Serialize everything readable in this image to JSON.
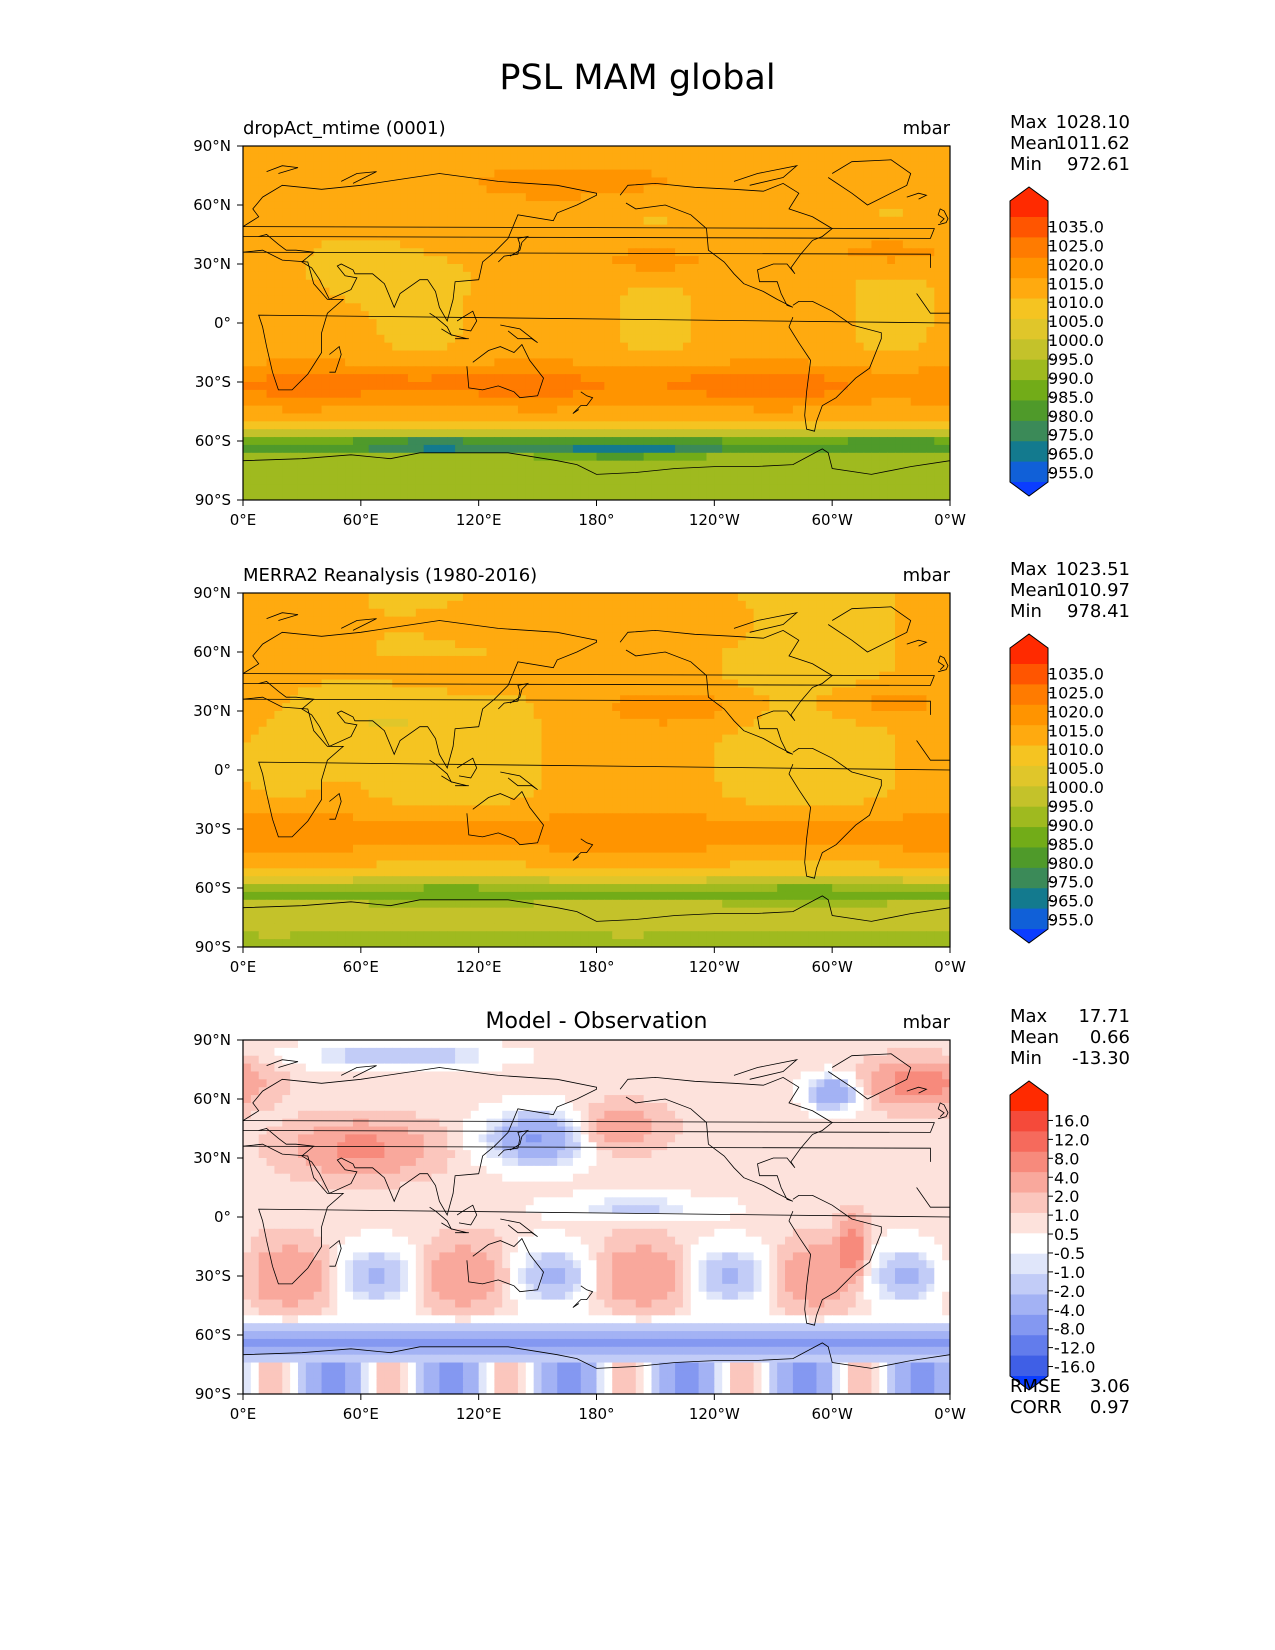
{
  "figure": {
    "title": "PSL MAM global"
  },
  "chart_data": [
    {
      "type": "heatmap",
      "title": "dropAct_mtime (0001)",
      "units": "mbar",
      "xlabel": "",
      "ylabel": "",
      "x_ticks": [
        "0°E",
        "60°E",
        "120°E",
        "180°",
        "120°W",
        "60°W",
        "0°W"
      ],
      "y_ticks": [
        "90°N",
        "60°N",
        "30°N",
        "0°",
        "30°S",
        "60°S",
        "90°S"
      ],
      "x_range": [
        0,
        360
      ],
      "y_range": [
        -90,
        90
      ],
      "stats": {
        "max_label": "Max",
        "max": "1028.10",
        "mean_label": "Mean",
        "mean": "1011.62",
        "min_label": "Min",
        "min": "972.61"
      },
      "colorbar": {
        "labels": [
          "1035.0",
          "1025.0",
          "1020.0",
          "1015.0",
          "1010.0",
          "1005.0",
          "1000.0",
          "995.0",
          "990.0",
          "985.0",
          "980.0",
          "975.0",
          "965.0",
          "955.0"
        ],
        "colors": [
          "#ff2a00",
          "#ff5500",
          "#ff7b00",
          "#ff9400",
          "#ffaa0f",
          "#f5c421",
          "#e0c62a",
          "#c4c22a",
          "#9fba1f",
          "#72ac18",
          "#4f9a2a",
          "#3b8a58",
          "#137a8e",
          "#1060d8",
          "#0b3dff"
        ]
      },
      "field": "psl_model"
    },
    {
      "type": "heatmap",
      "title": "MERRA2 Reanalysis (1980-2016)",
      "units": "mbar",
      "xlabel": "",
      "ylabel": "",
      "x_ticks": [
        "0°E",
        "60°E",
        "120°E",
        "180°",
        "120°W",
        "60°W",
        "0°W"
      ],
      "y_ticks": [
        "90°N",
        "60°N",
        "30°N",
        "0°",
        "30°S",
        "60°S",
        "90°S"
      ],
      "x_range": [
        0,
        360
      ],
      "y_range": [
        -90,
        90
      ],
      "stats": {
        "max_label": "Max",
        "max": "1023.51",
        "mean_label": "Mean",
        "mean": "1010.97",
        "min_label": "Min",
        "min": "978.41"
      },
      "colorbar": {
        "labels": [
          "1035.0",
          "1025.0",
          "1020.0",
          "1015.0",
          "1010.0",
          "1005.0",
          "1000.0",
          "995.0",
          "990.0",
          "985.0",
          "980.0",
          "975.0",
          "965.0",
          "955.0"
        ],
        "colors": [
          "#ff2a00",
          "#ff5500",
          "#ff7b00",
          "#ff9400",
          "#ffaa0f",
          "#f5c421",
          "#e0c62a",
          "#c4c22a",
          "#9fba1f",
          "#72ac18",
          "#4f9a2a",
          "#3b8a58",
          "#137a8e",
          "#1060d8",
          "#0b3dff"
        ]
      },
      "field": "psl_obs"
    },
    {
      "type": "heatmap",
      "title": "Model - Observation",
      "units": "mbar",
      "xlabel": "",
      "ylabel": "",
      "x_ticks": [
        "0°E",
        "60°E",
        "120°E",
        "180°",
        "120°W",
        "60°W",
        "0°W"
      ],
      "y_ticks": [
        "90°N",
        "60°N",
        "30°N",
        "0°",
        "30°S",
        "60°S",
        "90°S"
      ],
      "x_range": [
        0,
        360
      ],
      "y_range": [
        -90,
        90
      ],
      "stats": {
        "max_label": "Max",
        "max": "17.71",
        "mean_label": "Mean",
        "mean": "0.66",
        "min_label": "Min",
        "min": "-13.30"
      },
      "error_stats": {
        "rmse_label": "RMSE",
        "rmse": "3.06",
        "corr_label": "CORR",
        "corr": "0.97"
      },
      "colorbar": {
        "labels": [
          "16.0",
          "12.0",
          "8.0",
          "4.0",
          "2.0",
          "1.0",
          "0.5",
          "-0.5",
          "-1.0",
          "-2.0",
          "-4.0",
          "-8.0",
          "-12.0",
          "-16.0"
        ],
        "colors": [
          "#ff2a00",
          "#f54a3a",
          "#f66a5c",
          "#f78a7c",
          "#f9a89c",
          "#fbc6bd",
          "#fde2dc",
          "#ffffff",
          "#e0e6fa",
          "#c2ccf7",
          "#a3b2f4",
          "#8498f1",
          "#627cec",
          "#3f5fe6",
          "#0b3dff"
        ]
      },
      "field": "psl_diff"
    }
  ]
}
